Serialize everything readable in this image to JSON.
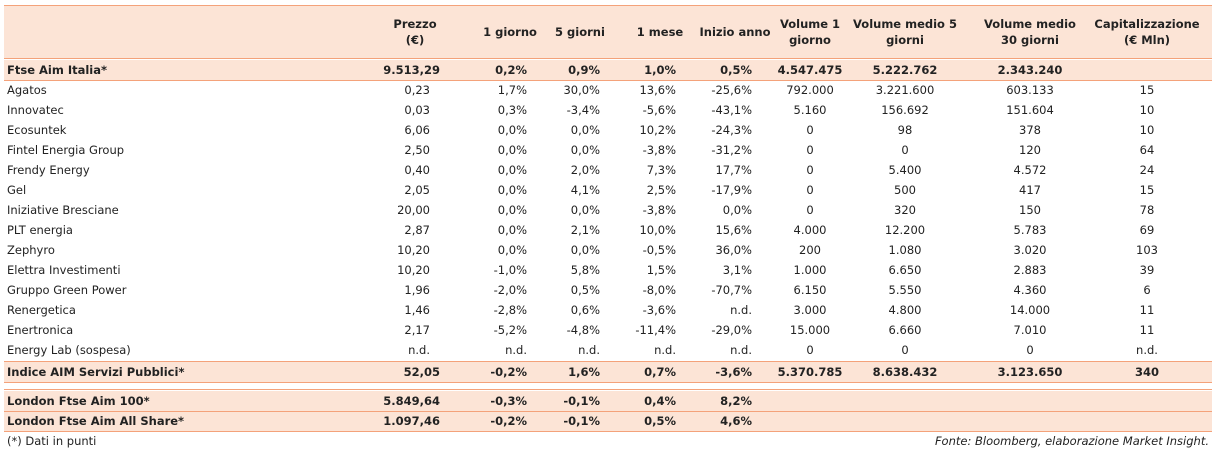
{
  "header": {
    "columns": [
      [
        "Prezzo",
        "(€)"
      ],
      [
        "1 giorno"
      ],
      [
        "5 giorni"
      ],
      [
        "1 mese"
      ],
      [
        "Inizio anno"
      ],
      [
        "Volume 1",
        "giorno"
      ],
      [
        "Volume medio 5",
        "giorni"
      ],
      [
        "Volume medio",
        "30 giorni"
      ],
      [
        "Capitalizzazione",
        "(€ Mln)"
      ]
    ]
  },
  "table": {
    "top_row": [
      "Ftse Aim Italia*",
      "9.513,29",
      "0,2%",
      "0,9%",
      "1,0%",
      "0,5%",
      "4.547.475",
      "5.222.762",
      "2.343.240"
    ],
    "rows": [
      [
        "Agatos",
        "0,23",
        "1,7%",
        "30,0%",
        "13,6%",
        "-25,6%",
        "792.000",
        "3.221.600",
        "603.133",
        "15"
      ],
      [
        "Innovatec",
        "0,03",
        "0,3%",
        "-3,4%",
        "-5,6%",
        "-43,1%",
        "5.160",
        "156.692",
        "151.604",
        "10"
      ],
      [
        "Ecosuntek",
        "6,06",
        "0,0%",
        "0,0%",
        "10,2%",
        "-24,3%",
        "0",
        "98",
        "378",
        "10"
      ],
      [
        "Fintel Energia Group",
        "2,50",
        "0,0%",
        "0,0%",
        "-3,8%",
        "-31,2%",
        "0",
        "0",
        "120",
        "64"
      ],
      [
        "Frendy Energy",
        "0,40",
        "0,0%",
        "2,0%",
        "7,3%",
        "17,7%",
        "0",
        "5.400",
        "4.572",
        "24"
      ],
      [
        "Gel",
        "2,05",
        "0,0%",
        "4,1%",
        "2,5%",
        "-17,9%",
        "0",
        "500",
        "417",
        "15"
      ],
      [
        "Iniziative Bresciane",
        "20,00",
        "0,0%",
        "0,0%",
        "-3,8%",
        "0,0%",
        "0",
        "320",
        "150",
        "78"
      ],
      [
        "PLT energia",
        "2,87",
        "0,0%",
        "2,1%",
        "10,0%",
        "15,6%",
        "4.000",
        "12.200",
        "5.783",
        "69"
      ],
      [
        "Zephyro",
        "10,20",
        "0,0%",
        "0,0%",
        "-0,5%",
        "36,0%",
        "200",
        "1.080",
        "3.020",
        "103"
      ],
      [
        "Elettra Investimenti",
        "10,20",
        "-1,0%",
        "5,8%",
        "1,5%",
        "3,1%",
        "1.000",
        "6.650",
        "2.883",
        "39"
      ],
      [
        "Gruppo Green Power",
        "1,96",
        "-2,0%",
        "0,5%",
        "-8,0%",
        "-70,7%",
        "6.150",
        "5.550",
        "4.360",
        "6"
      ],
      [
        "Renergetica",
        "1,46",
        "-2,8%",
        "0,6%",
        "-3,6%",
        "n.d.",
        "3.000",
        "4.800",
        "14.000",
        "11"
      ],
      [
        "Enertronica",
        "2,17",
        "-5,2%",
        "-4,8%",
        "-11,4%",
        "-29,0%",
        "15.000",
        "6.660",
        "7.010",
        "11"
      ],
      [
        "Energy Lab (sospesa)",
        "n.d.",
        "n.d.",
        "n.d.",
        "n.d.",
        "n.d.",
        "0",
        "0",
        "0",
        "n.d."
      ]
    ],
    "sector_row": [
      "Indice AIM Servizi Pubblici*",
      "52,05",
      "-0,2%",
      "1,6%",
      "0,7%",
      "-3,6%",
      "5.370.785",
      "8.638.432",
      "3.123.650",
      "340"
    ],
    "index_rows": [
      [
        "London Ftse Aim 100*",
        "5.849,64",
        "-0,3%",
        "-0,1%",
        "0,4%",
        "8,2%"
      ],
      [
        "London Ftse Aim All Share*",
        "1.097,46",
        "-0,2%",
        "-0,1%",
        "0,5%",
        "4,6%"
      ]
    ]
  },
  "footer": {
    "note": "(*) Dati in punti",
    "source": "Fonte: Bloomberg, elaborazione Market Insight."
  }
}
